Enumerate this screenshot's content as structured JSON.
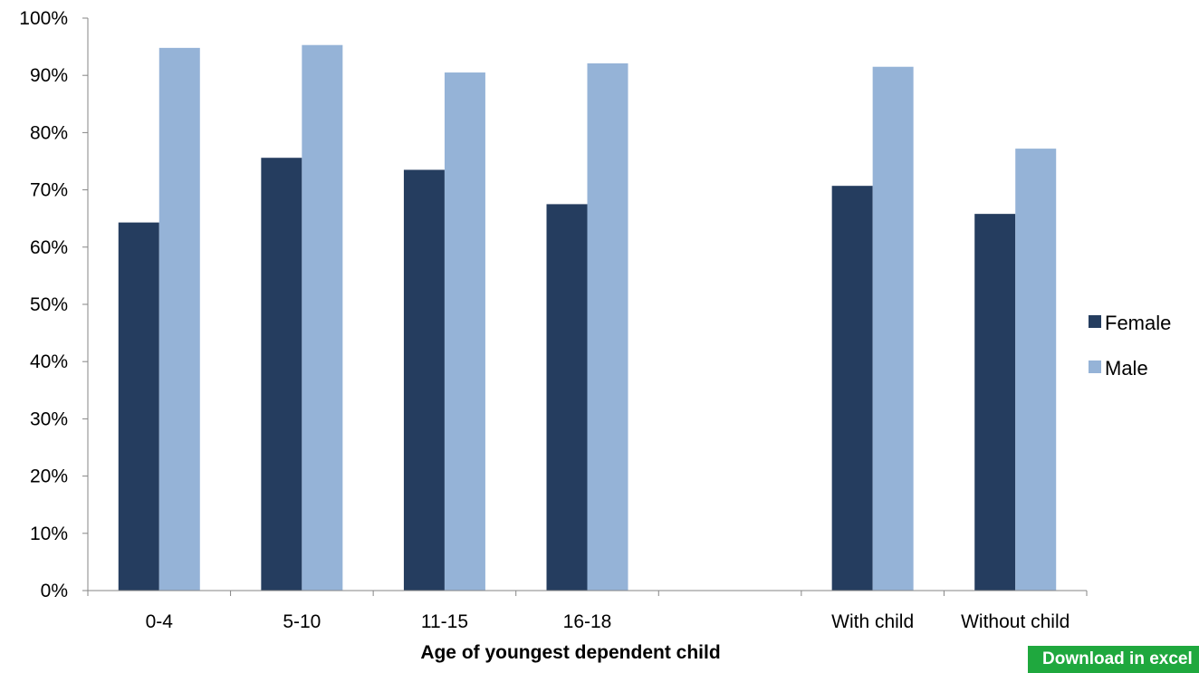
{
  "chart_data": {
    "type": "bar",
    "categories": [
      "0-4",
      "5-10",
      "11-15",
      "16-18",
      "",
      "With child",
      "Without child"
    ],
    "series": [
      {
        "name": "Female",
        "color": "#253d5f",
        "values": [
          64.3,
          75.6,
          73.5,
          67.5,
          null,
          70.7,
          65.8
        ]
      },
      {
        "name": "Male",
        "color": "#95b3d7",
        "values": [
          94.8,
          95.3,
          90.5,
          92.1,
          null,
          91.5,
          77.2
        ]
      }
    ],
    "xlabel": "Age of youngest dependent child",
    "ylabel": "",
    "ylim": [
      0,
      100
    ],
    "yticks": [
      "0%",
      "10%",
      "20%",
      "30%",
      "40%",
      "50%",
      "60%",
      "70%",
      "80%",
      "90%",
      "100%"
    ],
    "grid": false,
    "legend_position": "right"
  },
  "download_button": {
    "label": "Download in excel"
  }
}
